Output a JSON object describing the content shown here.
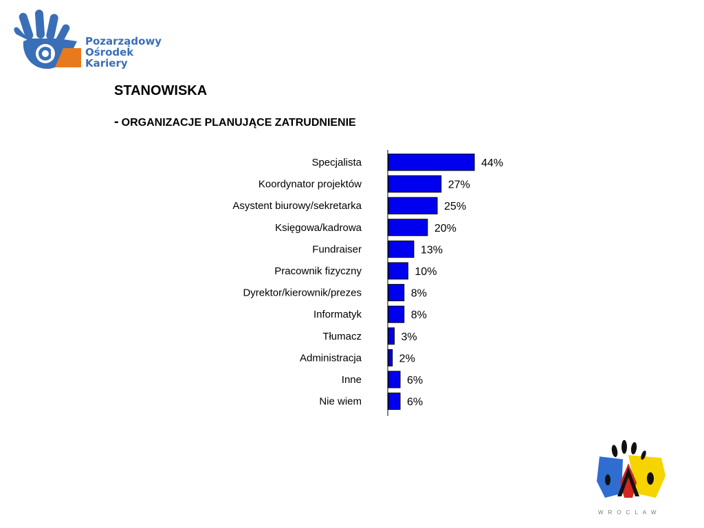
{
  "logo": {
    "lines": [
      "Pozarządowy",
      "Ośrodek",
      "Kariery"
    ],
    "colors": {
      "blue": "#3a6fb7",
      "orange": "#e87a1e"
    }
  },
  "header": {
    "title": "STANOWISKA",
    "dash": "-",
    "subtitle": "ORGANIZACJE PLANUJĄCE ZATRUDNIENIE"
  },
  "chart_data": {
    "type": "bar",
    "orientation": "horizontal",
    "title": "",
    "xlabel": "",
    "ylabel": "",
    "xlim": [
      0,
      44
    ],
    "grid": false,
    "legend": "none",
    "bar_color": "#0000ee",
    "categories": [
      "Specjalista",
      "Koordynator projektów",
      "Asystent biurowy/sekretarka",
      "Księgowa/kadrowa",
      "Fundraiser",
      "Pracownik fizyczny",
      "Dyrektor/kierownik/prezes",
      "Informatyk",
      "Tłumacz",
      "Administracja",
      "Inne",
      "Nie wiem"
    ],
    "values": [
      44,
      27,
      25,
      20,
      13,
      10,
      8,
      8,
      3,
      2,
      6,
      6
    ],
    "value_labels": [
      "44%",
      "27%",
      "25%",
      "20%",
      "13%",
      "10%",
      "8%",
      "8%",
      "3%",
      "2%",
      "6%",
      "6%"
    ]
  },
  "footer": {
    "city": "WROCLAW",
    "colors": {
      "blue": "#2f6dd0",
      "yellow": "#f5d400",
      "red": "#d3261f",
      "black": "#111111"
    }
  }
}
